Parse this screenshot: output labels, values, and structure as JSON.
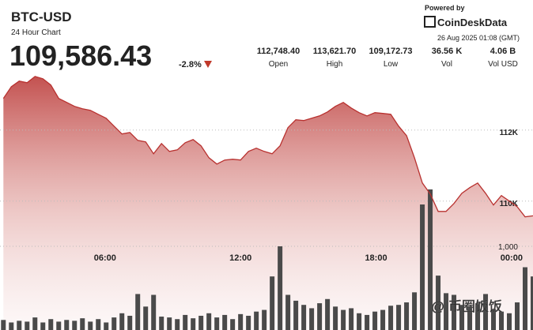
{
  "header": {
    "symbol": "BTC-USD",
    "subtitle": "24 Hour Chart",
    "price": "109,586.43",
    "change": "-2.8%",
    "powered_by": "Powered by",
    "brand": "CoinDeskData",
    "timestamp": "26 Aug 2025 01:08 (GMT)"
  },
  "stats": [
    {
      "value": "112,748.40",
      "label": "Open"
    },
    {
      "value": "113,621.70",
      "label": "High"
    },
    {
      "value": "109,172.73",
      "label": "Low"
    },
    {
      "value": "36.56 K",
      "label": "Vol"
    },
    {
      "value": "4.06 B",
      "label": "Vol USD"
    }
  ],
  "chart_data": {
    "type": "line",
    "x": [
      1.5,
      1.85,
      2.2,
      2.55,
      2.9,
      3.25,
      3.6,
      3.95,
      4.3,
      4.65,
      5,
      5.35,
      5.7,
      6.05,
      6.4,
      6.75,
      7.1,
      7.45,
      7.8,
      8.15,
      8.5,
      8.85,
      9.2,
      9.55,
      9.9,
      10.25,
      10.6,
      10.95,
      11.3,
      11.65,
      12,
      12.35,
      12.7,
      13.05,
      13.4,
      13.75,
      14.1,
      14.45,
      14.8,
      15.15,
      15.5,
      15.85,
      16.2,
      16.55,
      16.9,
      17.25,
      17.6,
      17.95,
      18.3,
      18.65,
      19,
      19.35,
      19.7,
      20.05,
      20.4,
      20.75,
      21.1,
      21.45,
      21.8,
      22.15,
      22.5,
      22.85,
      23.2,
      23.55,
      23.9,
      24.25,
      24.6,
      24.95
    ],
    "xlim": [
      1.35,
      24.95
    ],
    "xticks": [
      {
        "value": 6,
        "label": "06:00"
      },
      {
        "value": 12,
        "label": "12:00"
      },
      {
        "value": 18,
        "label": "18:00"
      },
      {
        "value": 24,
        "label": "00:00"
      }
    ],
    "price": {
      "color": "#b8312f",
      "values": [
        112889,
        113222,
        113378,
        113333,
        113511,
        113444,
        113267,
        112889,
        112778,
        112667,
        112600,
        112556,
        112444,
        112333,
        112111,
        111889,
        111933,
        111711,
        111667,
        111333,
        111622,
        111400,
        111444,
        111644,
        111733,
        111556,
        111222,
        111044,
        111156,
        111178,
        111156,
        111400,
        111489,
        111400,
        111333,
        111556,
        112067,
        112289,
        112267,
        112333,
        112400,
        112511,
        112667,
        112778,
        112622,
        112489,
        112400,
        112489,
        112467,
        112444,
        112111,
        111844,
        111222,
        110511,
        110200,
        109711,
        109711,
        109933,
        110222,
        110378,
        110511,
        110222,
        109889,
        110156,
        110000,
        109844,
        109556,
        109586
      ],
      "ylim": [
        106400,
        113550
      ],
      "yticks": [
        {
          "value": 112000,
          "label": "112K"
        },
        {
          "value": 110000,
          "label": "110K"
        }
      ]
    },
    "volume": {
      "color": "#4a4a4a",
      "values": [
        120,
        90,
        110,
        100,
        150,
        90,
        130,
        100,
        120,
        110,
        140,
        100,
        130,
        90,
        150,
        200,
        170,
        430,
        280,
        420,
        160,
        150,
        130,
        180,
        140,
        170,
        200,
        150,
        180,
        130,
        190,
        170,
        220,
        240,
        640,
        1000,
        420,
        350,
        300,
        260,
        320,
        370,
        280,
        240,
        260,
        200,
        180,
        220,
        240,
        290,
        300,
        330,
        450,
        1500,
        1680,
        650,
        440,
        420,
        300,
        280,
        320,
        430,
        250,
        220,
        200,
        330,
        750,
        640
      ],
      "ylim": [
        0,
        1800
      ],
      "yticks": [
        {
          "value": 1000,
          "label": "1,000"
        }
      ]
    },
    "grid": true
  },
  "watermark": "@ 币圈饭饭"
}
